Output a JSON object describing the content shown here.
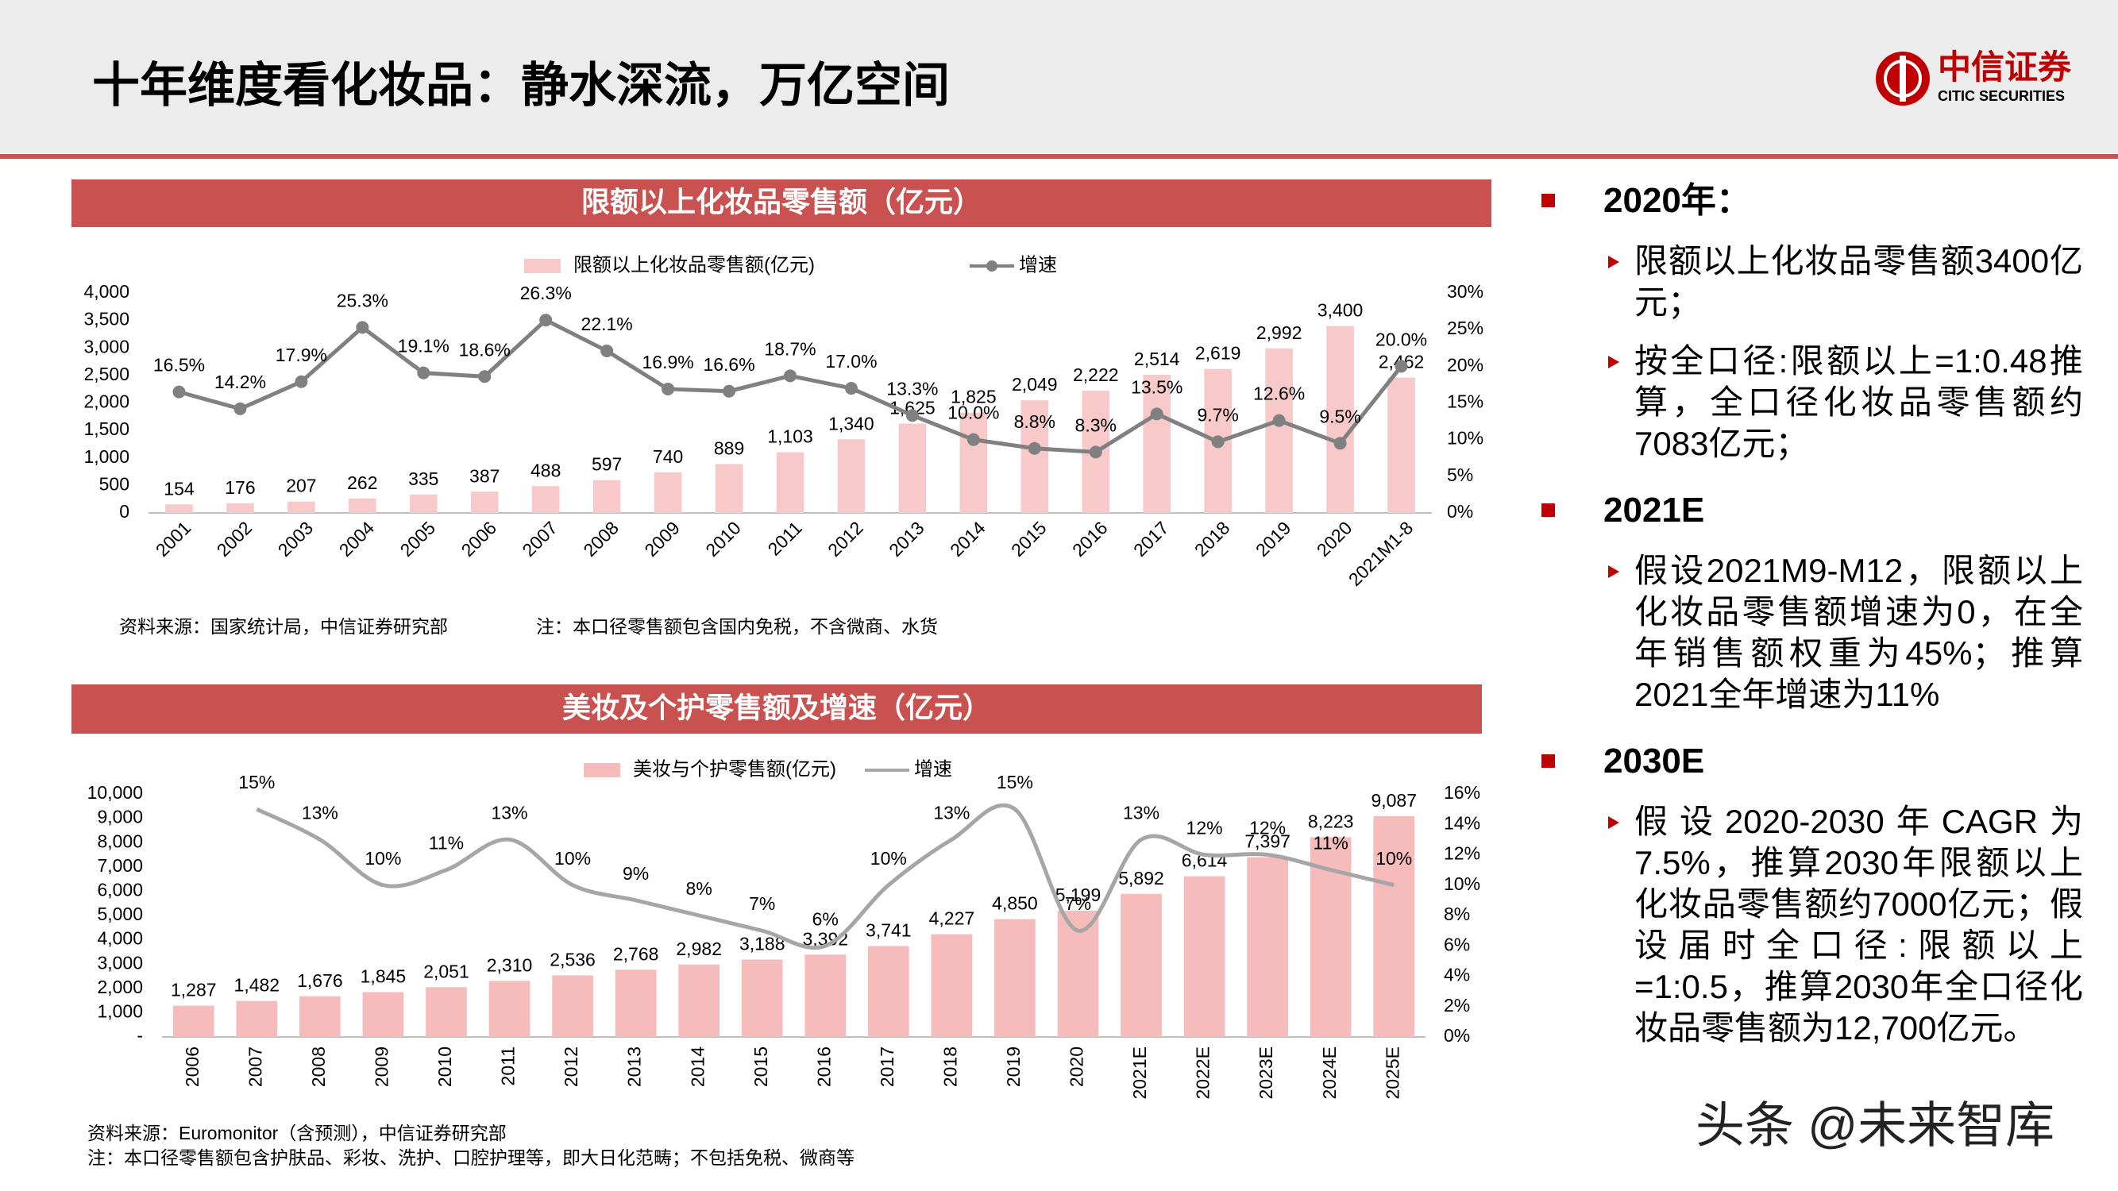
{
  "header": {
    "title": "十年维度看化妆品：静水深流，万亿空间",
    "logo": "中信证券",
    "logo_en": "CITIC SECURITIES"
  },
  "chart_data": [
    {
      "type": "combo",
      "title": "限额以上化妆品零售额（亿元）",
      "categories": [
        "2001",
        "2002",
        "2003",
        "2004",
        "2005",
        "2006",
        "2007",
        "2008",
        "2009",
        "2010",
        "2011",
        "2012",
        "2013",
        "2014",
        "2015",
        "2016",
        "2017",
        "2018",
        "2019",
        "2020",
        "2021M1-8"
      ],
      "series": [
        {
          "name": "限额以上化妆品零售额(亿元)",
          "kind": "bar",
          "color": "#f8c9c9",
          "values": [
            154,
            176,
            207,
            262,
            335,
            387,
            488,
            597,
            740,
            889,
            1103,
            1340,
            1625,
            1825,
            2049,
            2222,
            2514,
            2619,
            2992,
            3400,
            2462
          ],
          "value_labels": [
            "154",
            "176",
            "207",
            "262",
            "335",
            "387",
            "488",
            "597",
            "740",
            "889",
            "1,103",
            "1,340",
            "1,625",
            "1,825",
            "2,049",
            "2,222",
            "2,514",
            "2,619",
            "2,992",
            "3,400",
            "2,462"
          ]
        },
        {
          "name": "增速",
          "kind": "line",
          "axis": "y2",
          "color": "#808080",
          "markers": true,
          "smooth": false,
          "values": [
            16.5,
            14.2,
            17.9,
            25.3,
            19.1,
            18.6,
            26.3,
            22.1,
            16.9,
            16.6,
            18.7,
            17.0,
            13.3,
            10.0,
            8.8,
            8.3,
            13.5,
            9.7,
            12.6,
            9.5,
            20.0
          ],
          "value_labels": [
            "16.5%",
            "14.2%",
            "17.9%",
            "25.3%",
            "19.1%",
            "18.6%",
            "26.3%",
            "22.1%",
            "16.9%",
            "16.6%",
            "18.7%",
            "17.0%",
            "13.3%",
            "10.0%",
            "8.8%",
            "8.3%",
            "13.5%",
            "9.7%",
            "12.6%",
            "9.5%",
            "20.0%"
          ]
        }
      ],
      "ylim": [
        0,
        4000
      ],
      "yticks": [
        0,
        500,
        {
          "value": 1000,
          "label": "1,000"
        },
        {
          "value": 1500,
          "label": "1,500"
        },
        {
          "value": 2000,
          "label": "2,000"
        },
        {
          "value": 2500,
          "label": "2,500"
        },
        {
          "value": 3000,
          "label": "3,000"
        },
        {
          "value": 3500,
          "label": "3,500"
        },
        {
          "value": 4000,
          "label": "4,000"
        }
      ],
      "y2lim": [
        0,
        30
      ],
      "y2ticks": [
        {
          "value": 0,
          "label": "0%"
        },
        {
          "value": 5,
          "label": "5%"
        },
        {
          "value": 10,
          "label": "10%"
        },
        {
          "value": 15,
          "label": "15%"
        },
        {
          "value": 20,
          "label": "20%"
        },
        {
          "value": 25,
          "label": "25%"
        },
        {
          "value": 30,
          "label": "30%"
        }
      ],
      "grid": false,
      "source": "资料来源：国家统计局，中信证券研究部",
      "note": "注：本口径零售额包含国内免税，不含微商、水货"
    },
    {
      "type": "combo",
      "title": "美妆及个护零售额及增速（亿元）",
      "categories": [
        "2006",
        "2007",
        "2008",
        "2009",
        "2010",
        "2011",
        "2012",
        "2013",
        "2014",
        "2015",
        "2016",
        "2017",
        "2018",
        "2019",
        "2020",
        "2021E",
        "2022E",
        "2023E",
        "2024E",
        "2025E"
      ],
      "series": [
        {
          "name": "美妆与个护零售额(亿元)",
          "kind": "bar",
          "color": "#f6bcbc",
          "values": [
            1287,
            1482,
            1676,
            1845,
            2051,
            2310,
            2536,
            2768,
            2982,
            3188,
            3392,
            3741,
            4227,
            4850,
            5199,
            5892,
            6614,
            7397,
            8223,
            9087
          ],
          "value_labels": [
            "1,287",
            "1,482",
            "1,676",
            "1,845",
            "2,051",
            "2,310",
            "2,536",
            "2,768",
            "2,982",
            "3,188",
            "3,392",
            "3,741",
            "4,227",
            "4,850",
            "5,199",
            "5,892",
            "6,614",
            "7,397",
            "8,223",
            "9,087"
          ]
        },
        {
          "name": "增速",
          "kind": "line",
          "axis": "y2",
          "color": "#a6a6a6",
          "markers": false,
          "smooth": true,
          "values": [
            null,
            15,
            13,
            10,
            11,
            13,
            10,
            9,
            8,
            7,
            6,
            10,
            13,
            15,
            7,
            13,
            12,
            12,
            11,
            10
          ],
          "value_labels": [
            null,
            "15%",
            "13%",
            "10%",
            "11%",
            "13%",
            "10%",
            "9%",
            "8%",
            "7%",
            "6%",
            "10%",
            "13%",
            "15%",
            "7%",
            "13%",
            "12%",
            "12%",
            "11%",
            "10%"
          ]
        }
      ],
      "ylim": [
        0,
        10000
      ],
      "yticks": [
        {
          "value": 0,
          "label": "-"
        },
        {
          "value": 1000,
          "label": "1,000"
        },
        {
          "value": 2000,
          "label": "2,000"
        },
        {
          "value": 3000,
          "label": "3,000"
        },
        {
          "value": 4000,
          "label": "4,000"
        },
        {
          "value": 5000,
          "label": "5,000"
        },
        {
          "value": 6000,
          "label": "6,000"
        },
        {
          "value": 7000,
          "label": "7,000"
        },
        {
          "value": 8000,
          "label": "8,000"
        },
        {
          "value": 9000,
          "label": "9,000"
        },
        {
          "value": 10000,
          "label": "10,000"
        }
      ],
      "y2lim": [
        0,
        16
      ],
      "y2ticks": [
        {
          "value": 0,
          "label": "0%"
        },
        {
          "value": 2,
          "label": "2%"
        },
        {
          "value": 4,
          "label": "4%"
        },
        {
          "value": 6,
          "label": "6%"
        },
        {
          "value": 8,
          "label": "8%"
        },
        {
          "value": 10,
          "label": "10%"
        },
        {
          "value": 12,
          "label": "12%"
        },
        {
          "value": 14,
          "label": "14%"
        },
        {
          "value": 16,
          "label": "16%"
        }
      ],
      "grid": false,
      "source": "资料来源：Euromonitor（含预测），中信证券研究部",
      "note": "注：本口径零售额包含护肤品、彩妆、洗护、口腔护理等，即大日化范畴；不包括免税、微商等"
    }
  ],
  "summary": {
    "sections": [
      {
        "heading": "2020年：",
        "items": [
          "限额以上化妆品零售额3400亿元；",
          "按全口径:限额以上=1:0.48推算，全口径化妆品零售额约7083亿元；"
        ]
      },
      {
        "heading": "2021E",
        "items": [
          "假设2021M9-M12，限额以上化妆品零售额增速为0，在全年销售额权重为45%；推算2021全年增速为11%"
        ]
      },
      {
        "heading": "2030E",
        "items": [
          "假设2020-2030年CAGR为7.5%，推算2030年限额以上化妆品零售额约7000亿元；假设届时全口径:限额以上=1:0.5，推算2030年全口径化妆品零售额为12,700亿元。"
        ]
      }
    ]
  },
  "watermark": "头条 @未来智库"
}
